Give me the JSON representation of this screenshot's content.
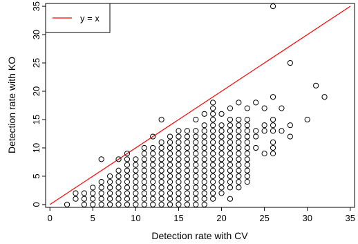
{
  "chart_data": {
    "type": "scatter",
    "title": "",
    "xlabel": "Detection rate with CV",
    "ylabel": "Detection rate with KO",
    "xlim": [
      -0.5,
      35.5
    ],
    "ylim": [
      -0.5,
      35.5
    ],
    "xticks": [
      0,
      5,
      10,
      15,
      20,
      25,
      30,
      35
    ],
    "yticks": [
      0,
      5,
      10,
      15,
      20,
      25,
      30,
      35
    ],
    "grid": false,
    "legend": {
      "position": "top-left",
      "entries": [
        {
          "label": "y = x",
          "color": "#ff0000",
          "style": "line"
        }
      ]
    },
    "reference_line": {
      "label": "y = x",
      "color": "#ff0000",
      "from": [
        0,
        0
      ],
      "to": [
        35,
        35
      ]
    },
    "marker_color": "#000000",
    "points": [
      [
        2,
        0
      ],
      [
        3,
        1
      ],
      [
        3,
        2
      ],
      [
        4,
        0
      ],
      [
        4,
        1
      ],
      [
        4,
        2
      ],
      [
        5,
        0
      ],
      [
        5,
        1
      ],
      [
        5,
        2
      ],
      [
        5,
        3
      ],
      [
        6,
        0
      ],
      [
        6,
        1
      ],
      [
        6,
        2
      ],
      [
        6,
        3
      ],
      [
        6,
        4
      ],
      [
        6,
        8
      ],
      [
        7,
        0
      ],
      [
        7,
        1
      ],
      [
        7,
        2
      ],
      [
        7,
        3
      ],
      [
        7,
        4
      ],
      [
        7,
        5
      ],
      [
        8,
        0
      ],
      [
        8,
        1
      ],
      [
        8,
        2
      ],
      [
        8,
        3
      ],
      [
        8,
        4
      ],
      [
        8,
        5
      ],
      [
        8,
        6
      ],
      [
        8,
        8
      ],
      [
        9,
        0
      ],
      [
        9,
        1
      ],
      [
        9,
        2
      ],
      [
        9,
        3
      ],
      [
        9,
        4
      ],
      [
        9,
        5
      ],
      [
        9,
        6
      ],
      [
        9,
        7
      ],
      [
        9,
        8
      ],
      [
        9,
        9
      ],
      [
        10,
        0
      ],
      [
        10,
        1
      ],
      [
        10,
        2
      ],
      [
        10,
        3
      ],
      [
        10,
        4
      ],
      [
        10,
        5
      ],
      [
        10,
        6
      ],
      [
        10,
        7
      ],
      [
        10,
        8
      ],
      [
        11,
        0
      ],
      [
        11,
        1
      ],
      [
        11,
        2
      ],
      [
        11,
        3
      ],
      [
        11,
        4
      ],
      [
        11,
        5
      ],
      [
        11,
        6
      ],
      [
        11,
        7
      ],
      [
        11,
        8
      ],
      [
        11,
        9
      ],
      [
        11,
        10
      ],
      [
        12,
        0
      ],
      [
        12,
        1
      ],
      [
        12,
        2
      ],
      [
        12,
        3
      ],
      [
        12,
        4
      ],
      [
        12,
        5
      ],
      [
        12,
        6
      ],
      [
        12,
        7
      ],
      [
        12,
        8
      ],
      [
        12,
        9
      ],
      [
        12,
        10
      ],
      [
        12,
        12
      ],
      [
        13,
        0
      ],
      [
        13,
        1
      ],
      [
        13,
        2
      ],
      [
        13,
        3
      ],
      [
        13,
        4
      ],
      [
        13,
        5
      ],
      [
        13,
        6
      ],
      [
        13,
        7
      ],
      [
        13,
        8
      ],
      [
        13,
        9
      ],
      [
        13,
        10
      ],
      [
        13,
        11
      ],
      [
        13,
        15
      ],
      [
        14,
        0
      ],
      [
        14,
        1
      ],
      [
        14,
        2
      ],
      [
        14,
        3
      ],
      [
        14,
        4
      ],
      [
        14,
        5
      ],
      [
        14,
        6
      ],
      [
        14,
        7
      ],
      [
        14,
        8
      ],
      [
        14,
        9
      ],
      [
        14,
        10
      ],
      [
        14,
        11
      ],
      [
        14,
        12
      ],
      [
        15,
        0
      ],
      [
        15,
        1
      ],
      [
        15,
        2
      ],
      [
        15,
        3
      ],
      [
        15,
        4
      ],
      [
        15,
        5
      ],
      [
        15,
        6
      ],
      [
        15,
        7
      ],
      [
        15,
        8
      ],
      [
        15,
        9
      ],
      [
        15,
        10
      ],
      [
        15,
        11
      ],
      [
        15,
        12
      ],
      [
        15,
        13
      ],
      [
        16,
        0
      ],
      [
        16,
        1
      ],
      [
        16,
        2
      ],
      [
        16,
        3
      ],
      [
        16,
        4
      ],
      [
        16,
        5
      ],
      [
        16,
        6
      ],
      [
        16,
        7
      ],
      [
        16,
        8
      ],
      [
        16,
        9
      ],
      [
        16,
        10
      ],
      [
        16,
        11
      ],
      [
        16,
        12
      ],
      [
        16,
        13
      ],
      [
        17,
        0
      ],
      [
        17,
        1
      ],
      [
        17,
        2
      ],
      [
        17,
        3
      ],
      [
        17,
        4
      ],
      [
        17,
        5
      ],
      [
        17,
        6
      ],
      [
        17,
        7
      ],
      [
        17,
        8
      ],
      [
        17,
        9
      ],
      [
        17,
        10
      ],
      [
        17,
        11
      ],
      [
        17,
        12
      ],
      [
        17,
        13
      ],
      [
        17,
        15
      ],
      [
        18,
        0
      ],
      [
        18,
        1
      ],
      [
        18,
        2
      ],
      [
        18,
        3
      ],
      [
        18,
        4
      ],
      [
        18,
        5
      ],
      [
        18,
        6
      ],
      [
        18,
        7
      ],
      [
        18,
        8
      ],
      [
        18,
        9
      ],
      [
        18,
        10
      ],
      [
        18,
        11
      ],
      [
        18,
        12
      ],
      [
        18,
        13
      ],
      [
        18,
        14
      ],
      [
        18,
        16
      ],
      [
        19,
        1
      ],
      [
        19,
        2
      ],
      [
        19,
        3
      ],
      [
        19,
        4
      ],
      [
        19,
        5
      ],
      [
        19,
        6
      ],
      [
        19,
        7
      ],
      [
        19,
        8
      ],
      [
        19,
        9
      ],
      [
        19,
        10
      ],
      [
        19,
        11
      ],
      [
        19,
        12
      ],
      [
        19,
        13
      ],
      [
        19,
        14
      ],
      [
        19,
        15
      ],
      [
        19,
        16
      ],
      [
        19,
        17
      ],
      [
        19,
        18
      ],
      [
        20,
        2
      ],
      [
        20,
        3
      ],
      [
        20,
        4
      ],
      [
        20,
        5
      ],
      [
        20,
        6
      ],
      [
        20,
        7
      ],
      [
        20,
        8
      ],
      [
        20,
        9
      ],
      [
        20,
        10
      ],
      [
        20,
        11
      ],
      [
        20,
        12
      ],
      [
        20,
        13
      ],
      [
        20,
        14
      ],
      [
        20,
        16
      ],
      [
        21,
        1
      ],
      [
        21,
        3
      ],
      [
        21,
        4
      ],
      [
        21,
        5
      ],
      [
        21,
        6
      ],
      [
        21,
        7
      ],
      [
        21,
        8
      ],
      [
        21,
        9
      ],
      [
        21,
        10
      ],
      [
        21,
        11
      ],
      [
        21,
        12
      ],
      [
        21,
        13
      ],
      [
        21,
        14
      ],
      [
        21,
        15
      ],
      [
        21,
        17
      ],
      [
        22,
        3
      ],
      [
        22,
        4
      ],
      [
        22,
        5
      ],
      [
        22,
        6
      ],
      [
        22,
        7
      ],
      [
        22,
        8
      ],
      [
        22,
        9
      ],
      [
        22,
        10
      ],
      [
        22,
        11
      ],
      [
        22,
        12
      ],
      [
        22,
        13
      ],
      [
        22,
        14
      ],
      [
        22,
        15
      ],
      [
        22,
        18
      ],
      [
        23,
        4
      ],
      [
        23,
        5
      ],
      [
        23,
        6
      ],
      [
        23,
        7
      ],
      [
        23,
        8
      ],
      [
        23,
        9
      ],
      [
        23,
        10
      ],
      [
        23,
        11
      ],
      [
        23,
        12
      ],
      [
        23,
        13
      ],
      [
        23,
        14
      ],
      [
        23,
        15
      ],
      [
        23,
        17
      ],
      [
        24,
        10
      ],
      [
        24,
        12
      ],
      [
        24,
        13
      ],
      [
        24,
        18
      ],
      [
        25,
        9
      ],
      [
        25,
        13
      ],
      [
        25,
        14
      ],
      [
        25,
        17
      ],
      [
        26,
        9
      ],
      [
        26,
        10
      ],
      [
        26,
        11
      ],
      [
        26,
        13
      ],
      [
        26,
        14
      ],
      [
        26,
        15
      ],
      [
        26,
        19
      ],
      [
        26,
        35
      ],
      [
        27,
        13
      ],
      [
        27,
        17
      ],
      [
        28,
        12
      ],
      [
        28,
        14
      ],
      [
        28,
        25
      ],
      [
        30,
        15
      ],
      [
        31,
        21
      ],
      [
        32,
        19
      ]
    ]
  }
}
